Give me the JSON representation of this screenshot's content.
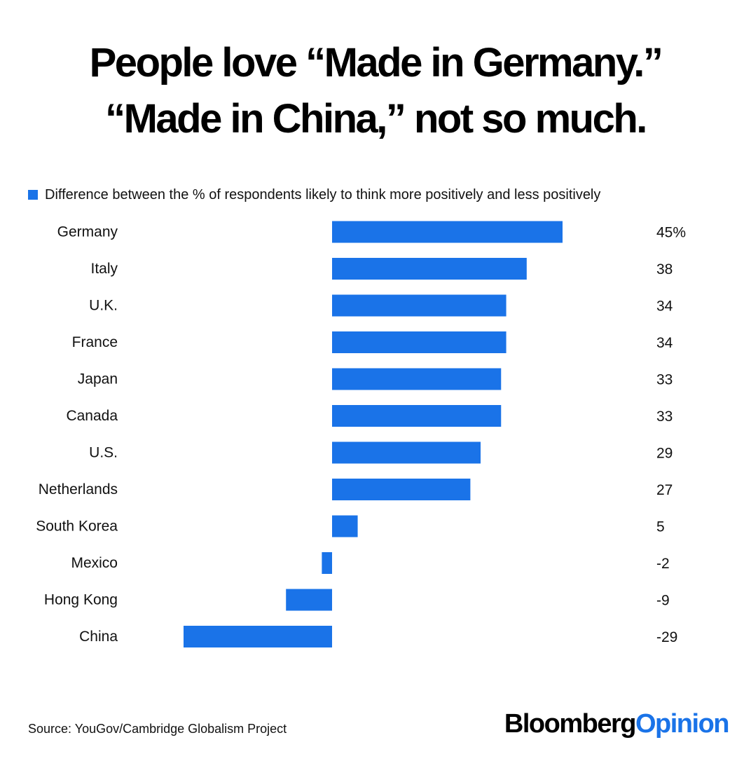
{
  "title": {
    "line1": "People love “Made in Germany.”",
    "line2": "“Made in China,” not so much."
  },
  "legend": {
    "label": "Difference between the % of respondents likely to think more positively and less positively",
    "color": "#1a73e8"
  },
  "chart_data": {
    "type": "bar",
    "orientation": "horizontal",
    "categories": [
      "Germany",
      "Italy",
      "U.K.",
      "France",
      "Japan",
      "Canada",
      "U.S.",
      "Netherlands",
      "South Korea",
      "Mexico",
      "Hong Kong",
      "China"
    ],
    "values": [
      45,
      38,
      34,
      34,
      33,
      33,
      29,
      27,
      5,
      -2,
      -9,
      -29
    ],
    "value_labels": [
      "45%",
      "38",
      "34",
      "34",
      "33",
      "33",
      "29",
      "27",
      "5",
      "-2",
      "-9",
      "-29"
    ],
    "series_name": "Difference between the % of respondents likely to think more positively and less positively",
    "xlim": [
      -29,
      45
    ],
    "grid": false,
    "bar_color": "#1a73e8"
  },
  "footer": {
    "source": "Source: YouGov/Cambridge Globalism Project",
    "brand_main": "Bloomberg",
    "brand_accent": "Opinion"
  }
}
